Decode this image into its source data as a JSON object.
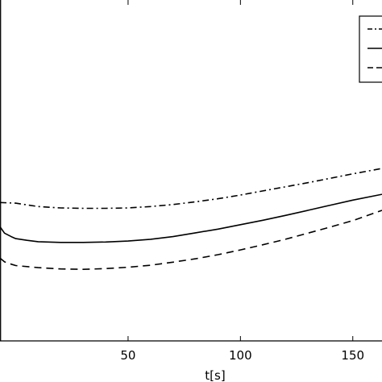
{
  "chart_data": {
    "type": "line",
    "title": "",
    "xlabel": "t[s]",
    "ylabel": "",
    "xlim": [
      -7,
      163
    ],
    "ylim": [
      0,
      100
    ],
    "grid": false,
    "legend": {
      "placement": "top-right",
      "entries": [
        "",
        "",
        ""
      ]
    },
    "x_ticks": [
      50,
      100,
      150
    ],
    "x_tick_labels": [
      "50",
      "100",
      "150"
    ],
    "series": [
      {
        "style": "dash-dot",
        "x": [
          -7,
          0,
          10,
          20,
          30,
          40,
          50,
          60,
          70,
          80,
          90,
          100,
          110,
          120,
          130,
          140,
          150,
          163
        ],
        "y": [
          40.6,
          40.4,
          39.4,
          39.0,
          38.9,
          38.9,
          39.0,
          39.4,
          40.0,
          40.8,
          41.7,
          42.8,
          44.0,
          45.2,
          46.4,
          47.7,
          49.0,
          50.6
        ]
      },
      {
        "style": "solid",
        "x": [
          -7,
          -5,
          -2,
          0,
          5,
          10,
          20,
          30,
          40,
          50,
          60,
          70,
          80,
          90,
          100,
          110,
          120,
          130,
          140,
          150,
          163
        ],
        "y": [
          33.5,
          31.6,
          30.6,
          30.0,
          29.5,
          29.1,
          28.9,
          28.9,
          29.0,
          29.3,
          29.8,
          30.6,
          31.7,
          32.8,
          34.1,
          35.4,
          36.8,
          38.3,
          39.8,
          41.3,
          43.0
        ]
      },
      {
        "style": "dashed",
        "x": [
          -7,
          -5,
          -2,
          0,
          10,
          20,
          30,
          40,
          50,
          60,
          70,
          80,
          90,
          100,
          110,
          120,
          130,
          140,
          150,
          163
        ],
        "y": [
          24.3,
          23.2,
          22.5,
          22.1,
          21.5,
          21.1,
          21.0,
          21.2,
          21.6,
          22.2,
          23.1,
          24.1,
          25.3,
          26.7,
          28.2,
          29.8,
          31.6,
          33.4,
          35.3,
          38.3
        ]
      }
    ]
  }
}
